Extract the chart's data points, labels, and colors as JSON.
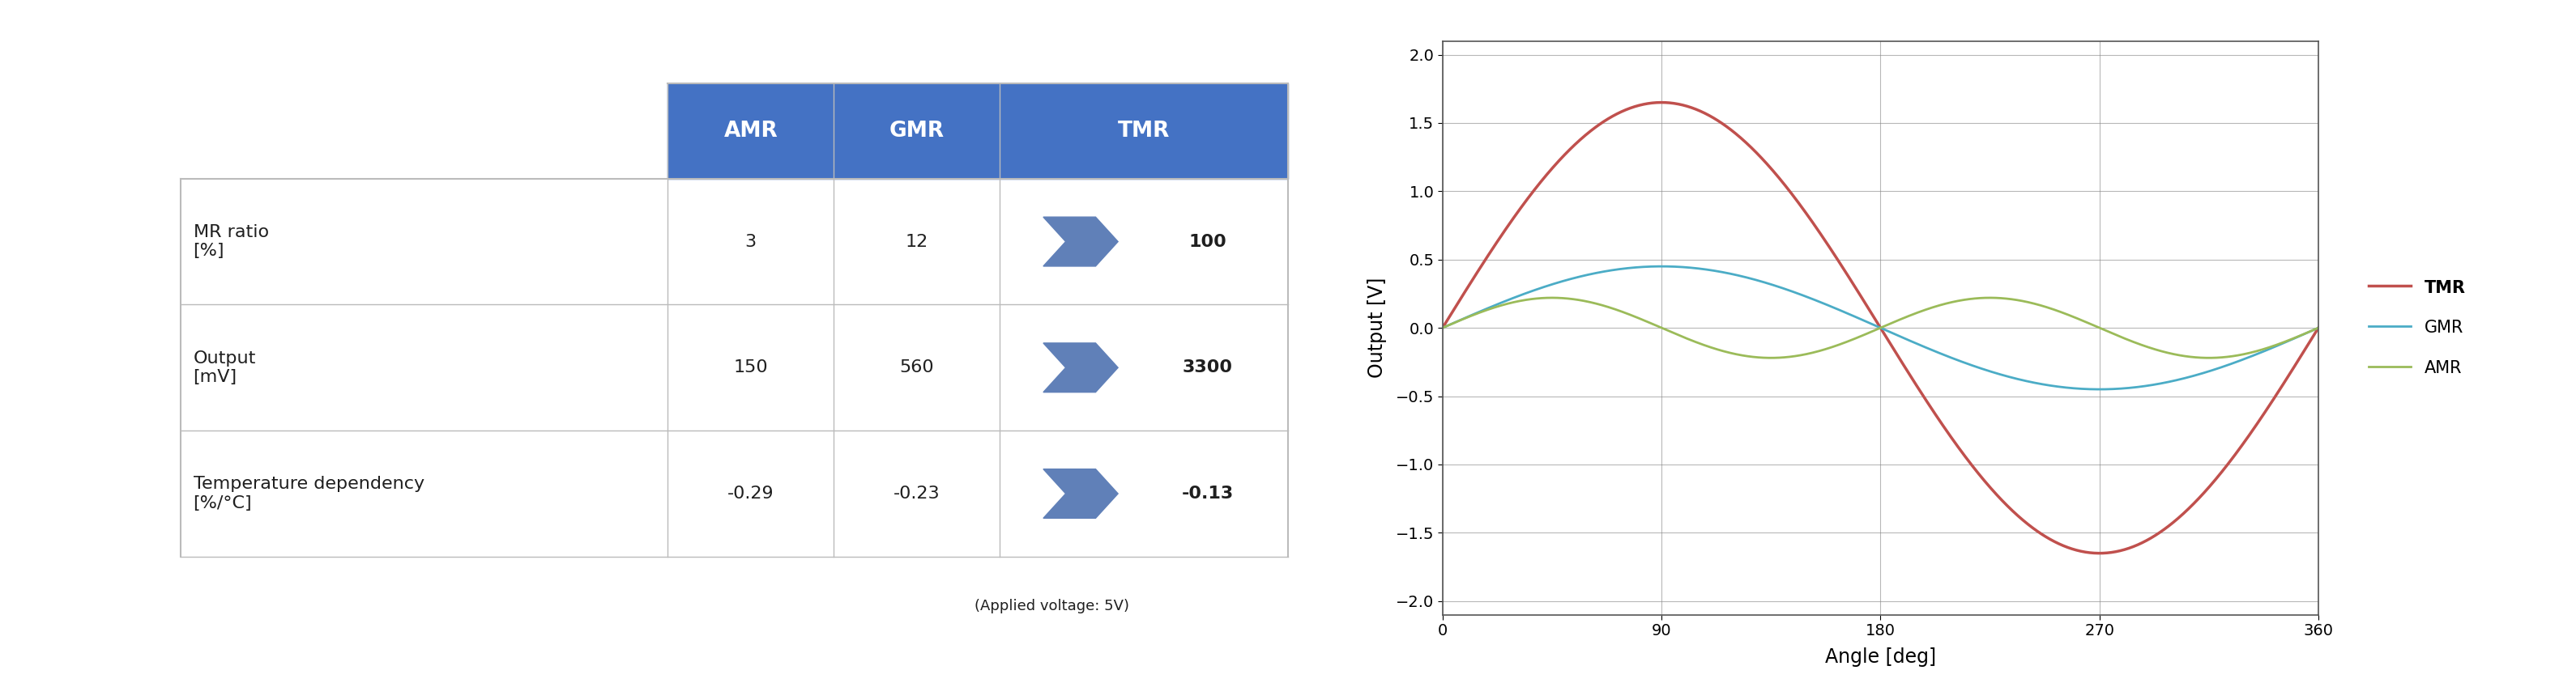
{
  "table_header_color": "#4472C4",
  "table_header_text_color": "#FFFFFF",
  "table_border_color": "#BBBBBB",
  "table_bg_color": "#FFFFFF",
  "table_text_color": "#1F1F1F",
  "col_headers": [
    "",
    "AMR",
    "GMR",
    "TMR"
  ],
  "rows": [
    {
      "label": "MR ratio\n[%]",
      "amr": "3",
      "gmr": "12",
      "tmr_val": "100"
    },
    {
      "label": "Output\n[mV]",
      "amr": "150",
      "gmr": "560",
      "tmr_val": "3300"
    },
    {
      "label": "Temperature dependency\n[%/°C]",
      "amr": "-0.29",
      "gmr": "-0.23",
      "tmr_val": "-0.13"
    }
  ],
  "applied_voltage_note": "(Applied voltage: 5V)",
  "arrow_color": "#6080B8",
  "xlabel": "Angle [deg]",
  "ylabel": "Output [V]",
  "x_ticks": [
    0,
    90,
    180,
    270,
    360
  ],
  "y_ticks": [
    -2,
    -1.5,
    -1,
    -0.5,
    0,
    0.5,
    1,
    1.5,
    2
  ],
  "ylim": [
    -2.1,
    2.1
  ],
  "xlim": [
    0,
    360
  ],
  "tmr_amplitude": 1.65,
  "gmr_amplitude": 0.45,
  "amr_amplitude": 0.22,
  "tmr_color": "#C0504D",
  "gmr_color": "#4BACC6",
  "amr_color": "#9BBB59",
  "legend_entries": [
    "TMR",
    "GMR",
    "AMR"
  ],
  "grid_color": "#888888",
  "axis_color": "#555555",
  "background_color": "#FFFFFF",
  "fig_width": 31.8,
  "fig_height": 8.44
}
